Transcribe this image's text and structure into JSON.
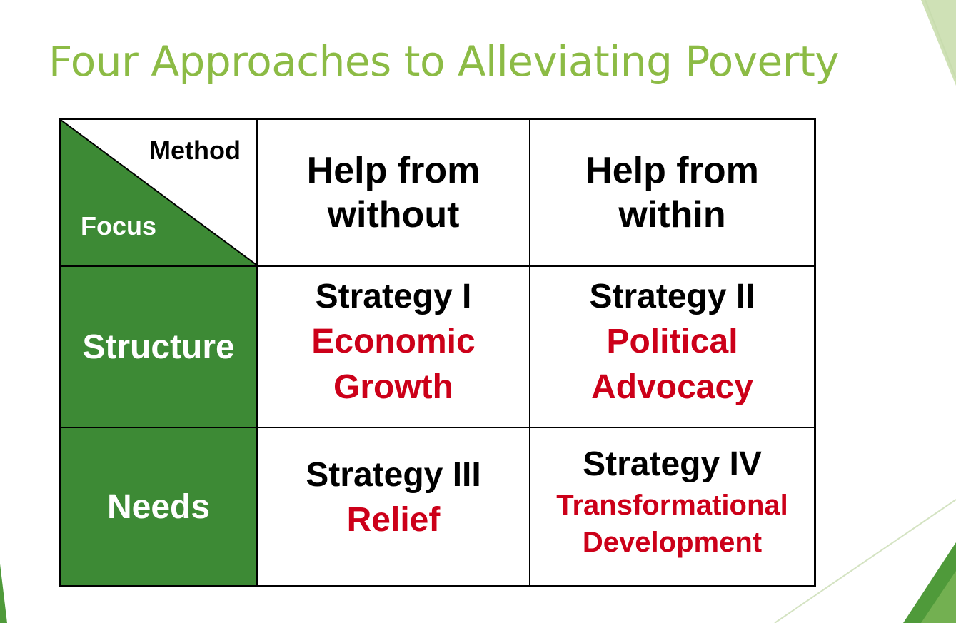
{
  "slide": {
    "title": "Four Approaches to Alleviating Poverty",
    "colors": {
      "title": "#8cbb45",
      "accent_green": "#3d8a35",
      "strategy_red": "#cc0019"
    }
  },
  "matrix": {
    "corner": {
      "method": "Method",
      "focus": "Focus"
    },
    "columns": [
      {
        "line1": "Help from",
        "line2": "without"
      },
      {
        "line1": "Help from",
        "line2": "within"
      }
    ],
    "rows": [
      {
        "label": "Structure"
      },
      {
        "label": "Needs"
      }
    ],
    "cells": {
      "structure_without": {
        "strategy": "Strategy I",
        "name_line1": "Economic",
        "name_line2": "Growth"
      },
      "structure_within": {
        "strategy": "Strategy II",
        "name_line1": "Political",
        "name_line2": "Advocacy"
      },
      "needs_without": {
        "strategy": "Strategy III",
        "name_line1": "Relief"
      },
      "needs_within": {
        "strategy": "Strategy IV",
        "name_line1": "Transformational",
        "name_line2": "Development"
      }
    }
  }
}
